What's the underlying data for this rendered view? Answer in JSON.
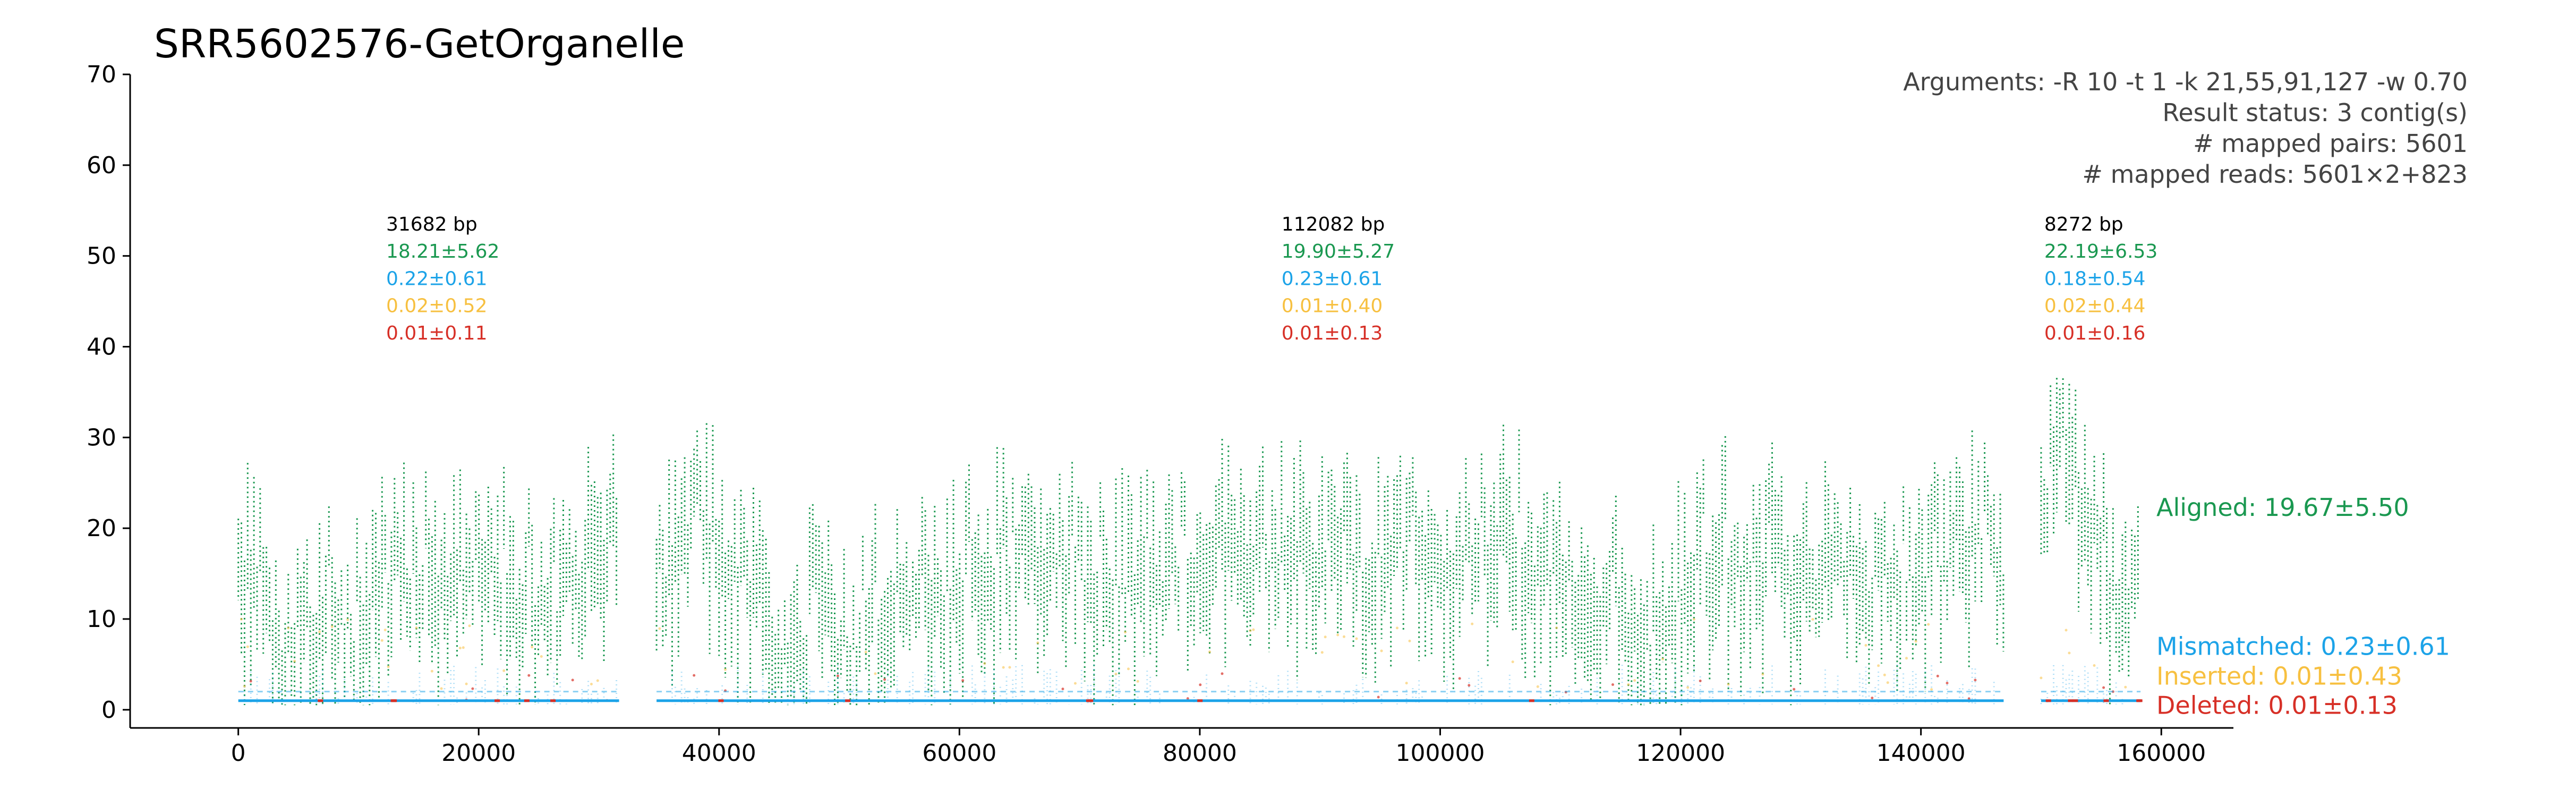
{
  "chart_data": {
    "type": "scatter",
    "title": "SRR5602576-GetOrganelle",
    "xlabel": "",
    "ylabel": "",
    "xlim": [
      -9000,
      166000
    ],
    "ylim": [
      -2,
      70
    ],
    "xticks": [
      0,
      20000,
      40000,
      60000,
      80000,
      100000,
      120000,
      140000,
      160000
    ],
    "xtick_labels": [
      "0",
      "20000",
      "40000",
      "60000",
      "80000",
      "100000",
      "120000",
      "140000",
      "160000"
    ],
    "yticks": [
      0,
      10,
      20,
      30,
      40,
      50,
      60,
      70
    ],
    "ytick_labels": [
      "0",
      "10",
      "20",
      "30",
      "40",
      "50",
      "60",
      "70"
    ],
    "grid": false,
    "arguments": [
      "Arguments: -R 10 -t 1 -k 21,55,91,127 -w 0.70",
      "Result status: 3 contig(s)",
      "# mapped pairs: 5601",
      "# mapped reads: 5601×2+823"
    ],
    "segments": [
      {
        "start": 0,
        "end": 31682,
        "length_label": "31682 bp",
        "aligned": "18.21±5.62",
        "mismatched": "0.22±0.61",
        "inserted": "0.02±0.52",
        "deleted": "0.01±0.11"
      },
      {
        "start": 34800,
        "end": 146882,
        "length_label": "112082 bp",
        "aligned": "19.90±5.27",
        "mismatched": "0.23±0.61",
        "inserted": "0.01±0.40",
        "deleted": "0.01±0.13"
      },
      {
        "start": 150000,
        "end": 158272,
        "length_label": "8272 bp",
        "aligned": "22.19±6.53",
        "mismatched": "0.18±0.54",
        "inserted": "0.02±0.44",
        "deleted": "0.01±0.16"
      }
    ],
    "profile": [
      {
        "x": 0,
        "y": 19
      },
      {
        "x": 1500,
        "y": 22
      },
      {
        "x": 3000,
        "y": 11
      },
      {
        "x": 4500,
        "y": 9
      },
      {
        "x": 6000,
        "y": 13
      },
      {
        "x": 7500,
        "y": 15
      },
      {
        "x": 9000,
        "y": 13
      },
      {
        "x": 10500,
        "y": 14
      },
      {
        "x": 12000,
        "y": 19
      },
      {
        "x": 13500,
        "y": 21
      },
      {
        "x": 15000,
        "y": 20
      },
      {
        "x": 16500,
        "y": 17
      },
      {
        "x": 18000,
        "y": 20
      },
      {
        "x": 19500,
        "y": 18
      },
      {
        "x": 21000,
        "y": 22
      },
      {
        "x": 22500,
        "y": 19
      },
      {
        "x": 24000,
        "y": 17
      },
      {
        "x": 25500,
        "y": 15
      },
      {
        "x": 27000,
        "y": 18
      },
      {
        "x": 28500,
        "y": 21
      },
      {
        "x": 30000,
        "y": 23
      },
      {
        "x": 31600,
        "y": 28
      },
      {
        "x": 34800,
        "y": 20
      },
      {
        "x": 36500,
        "y": 22
      },
      {
        "x": 38000,
        "y": 24
      },
      {
        "x": 39500,
        "y": 27
      },
      {
        "x": 41000,
        "y": 22
      },
      {
        "x": 42500,
        "y": 19
      },
      {
        "x": 44000,
        "y": 15
      },
      {
        "x": 45500,
        "y": 12
      },
      {
        "x": 47000,
        "y": 14
      },
      {
        "x": 48500,
        "y": 16
      },
      {
        "x": 50000,
        "y": 13
      },
      {
        "x": 51500,
        "y": 12
      },
      {
        "x": 53000,
        "y": 15
      },
      {
        "x": 54500,
        "y": 17
      },
      {
        "x": 56000,
        "y": 18
      },
      {
        "x": 57500,
        "y": 18
      },
      {
        "x": 59000,
        "y": 19
      },
      {
        "x": 60500,
        "y": 20
      },
      {
        "x": 62000,
        "y": 21
      },
      {
        "x": 63500,
        "y": 22
      },
      {
        "x": 65000,
        "y": 21
      },
      {
        "x": 66500,
        "y": 20
      },
      {
        "x": 68000,
        "y": 19
      },
      {
        "x": 69500,
        "y": 20
      },
      {
        "x": 71000,
        "y": 19
      },
      {
        "x": 72500,
        "y": 18
      },
      {
        "x": 74000,
        "y": 20
      },
      {
        "x": 75500,
        "y": 19
      },
      {
        "x": 77000,
        "y": 20
      },
      {
        "x": 78500,
        "y": 21
      },
      {
        "x": 80000,
        "y": 22
      },
      {
        "x": 81500,
        "y": 26
      },
      {
        "x": 83000,
        "y": 22
      },
      {
        "x": 84500,
        "y": 20
      },
      {
        "x": 86000,
        "y": 23
      },
      {
        "x": 87500,
        "y": 24
      },
      {
        "x": 89000,
        "y": 22
      },
      {
        "x": 90500,
        "y": 23
      },
      {
        "x": 92000,
        "y": 22
      },
      {
        "x": 93500,
        "y": 21
      },
      {
        "x": 95000,
        "y": 23
      },
      {
        "x": 96500,
        "y": 22
      },
      {
        "x": 98000,
        "y": 25
      },
      {
        "x": 99500,
        "y": 20
      },
      {
        "x": 101000,
        "y": 21
      },
      {
        "x": 102500,
        "y": 23
      },
      {
        "x": 104000,
        "y": 24
      },
      {
        "x": 105500,
        "y": 26
      },
      {
        "x": 107000,
        "y": 22
      },
      {
        "x": 108500,
        "y": 20
      },
      {
        "x": 110000,
        "y": 19
      },
      {
        "x": 111500,
        "y": 18
      },
      {
        "x": 113000,
        "y": 19
      },
      {
        "x": 114500,
        "y": 18
      },
      {
        "x": 116000,
        "y": 16
      },
      {
        "x": 117500,
        "y": 12
      },
      {
        "x": 119000,
        "y": 17
      },
      {
        "x": 120500,
        "y": 20
      },
      {
        "x": 122000,
        "y": 22
      },
      {
        "x": 123500,
        "y": 23
      },
      {
        "x": 125000,
        "y": 21
      },
      {
        "x": 126500,
        "y": 22
      },
      {
        "x": 128000,
        "y": 23
      },
      {
        "x": 129500,
        "y": 20
      },
      {
        "x": 131000,
        "y": 19
      },
      {
        "x": 132500,
        "y": 20
      },
      {
        "x": 134000,
        "y": 18
      },
      {
        "x": 135500,
        "y": 17
      },
      {
        "x": 137000,
        "y": 16
      },
      {
        "x": 138500,
        "y": 18
      },
      {
        "x": 140000,
        "y": 20
      },
      {
        "x": 141500,
        "y": 22
      },
      {
        "x": 143000,
        "y": 21
      },
      {
        "x": 144500,
        "y": 24
      },
      {
        "x": 146800,
        "y": 20
      },
      {
        "x": 150000,
        "y": 26
      },
      {
        "x": 151500,
        "y": 30
      },
      {
        "x": 153000,
        "y": 28
      },
      {
        "x": 154500,
        "y": 24
      },
      {
        "x": 156000,
        "y": 19
      },
      {
        "x": 157500,
        "y": 17
      },
      {
        "x": 158200,
        "y": 18
      }
    ],
    "series": [
      {
        "name": "Aligned: 19.67±5.50",
        "color": "#1a9850"
      },
      {
        "name": "Mismatched: 0.23±0.61",
        "color": "#1ca3e8"
      },
      {
        "name": "Inserted: 0.01±0.43",
        "color": "#f7c040"
      },
      {
        "name": "Deleted: 0.01±0.13",
        "color": "#d73027"
      }
    ]
  }
}
